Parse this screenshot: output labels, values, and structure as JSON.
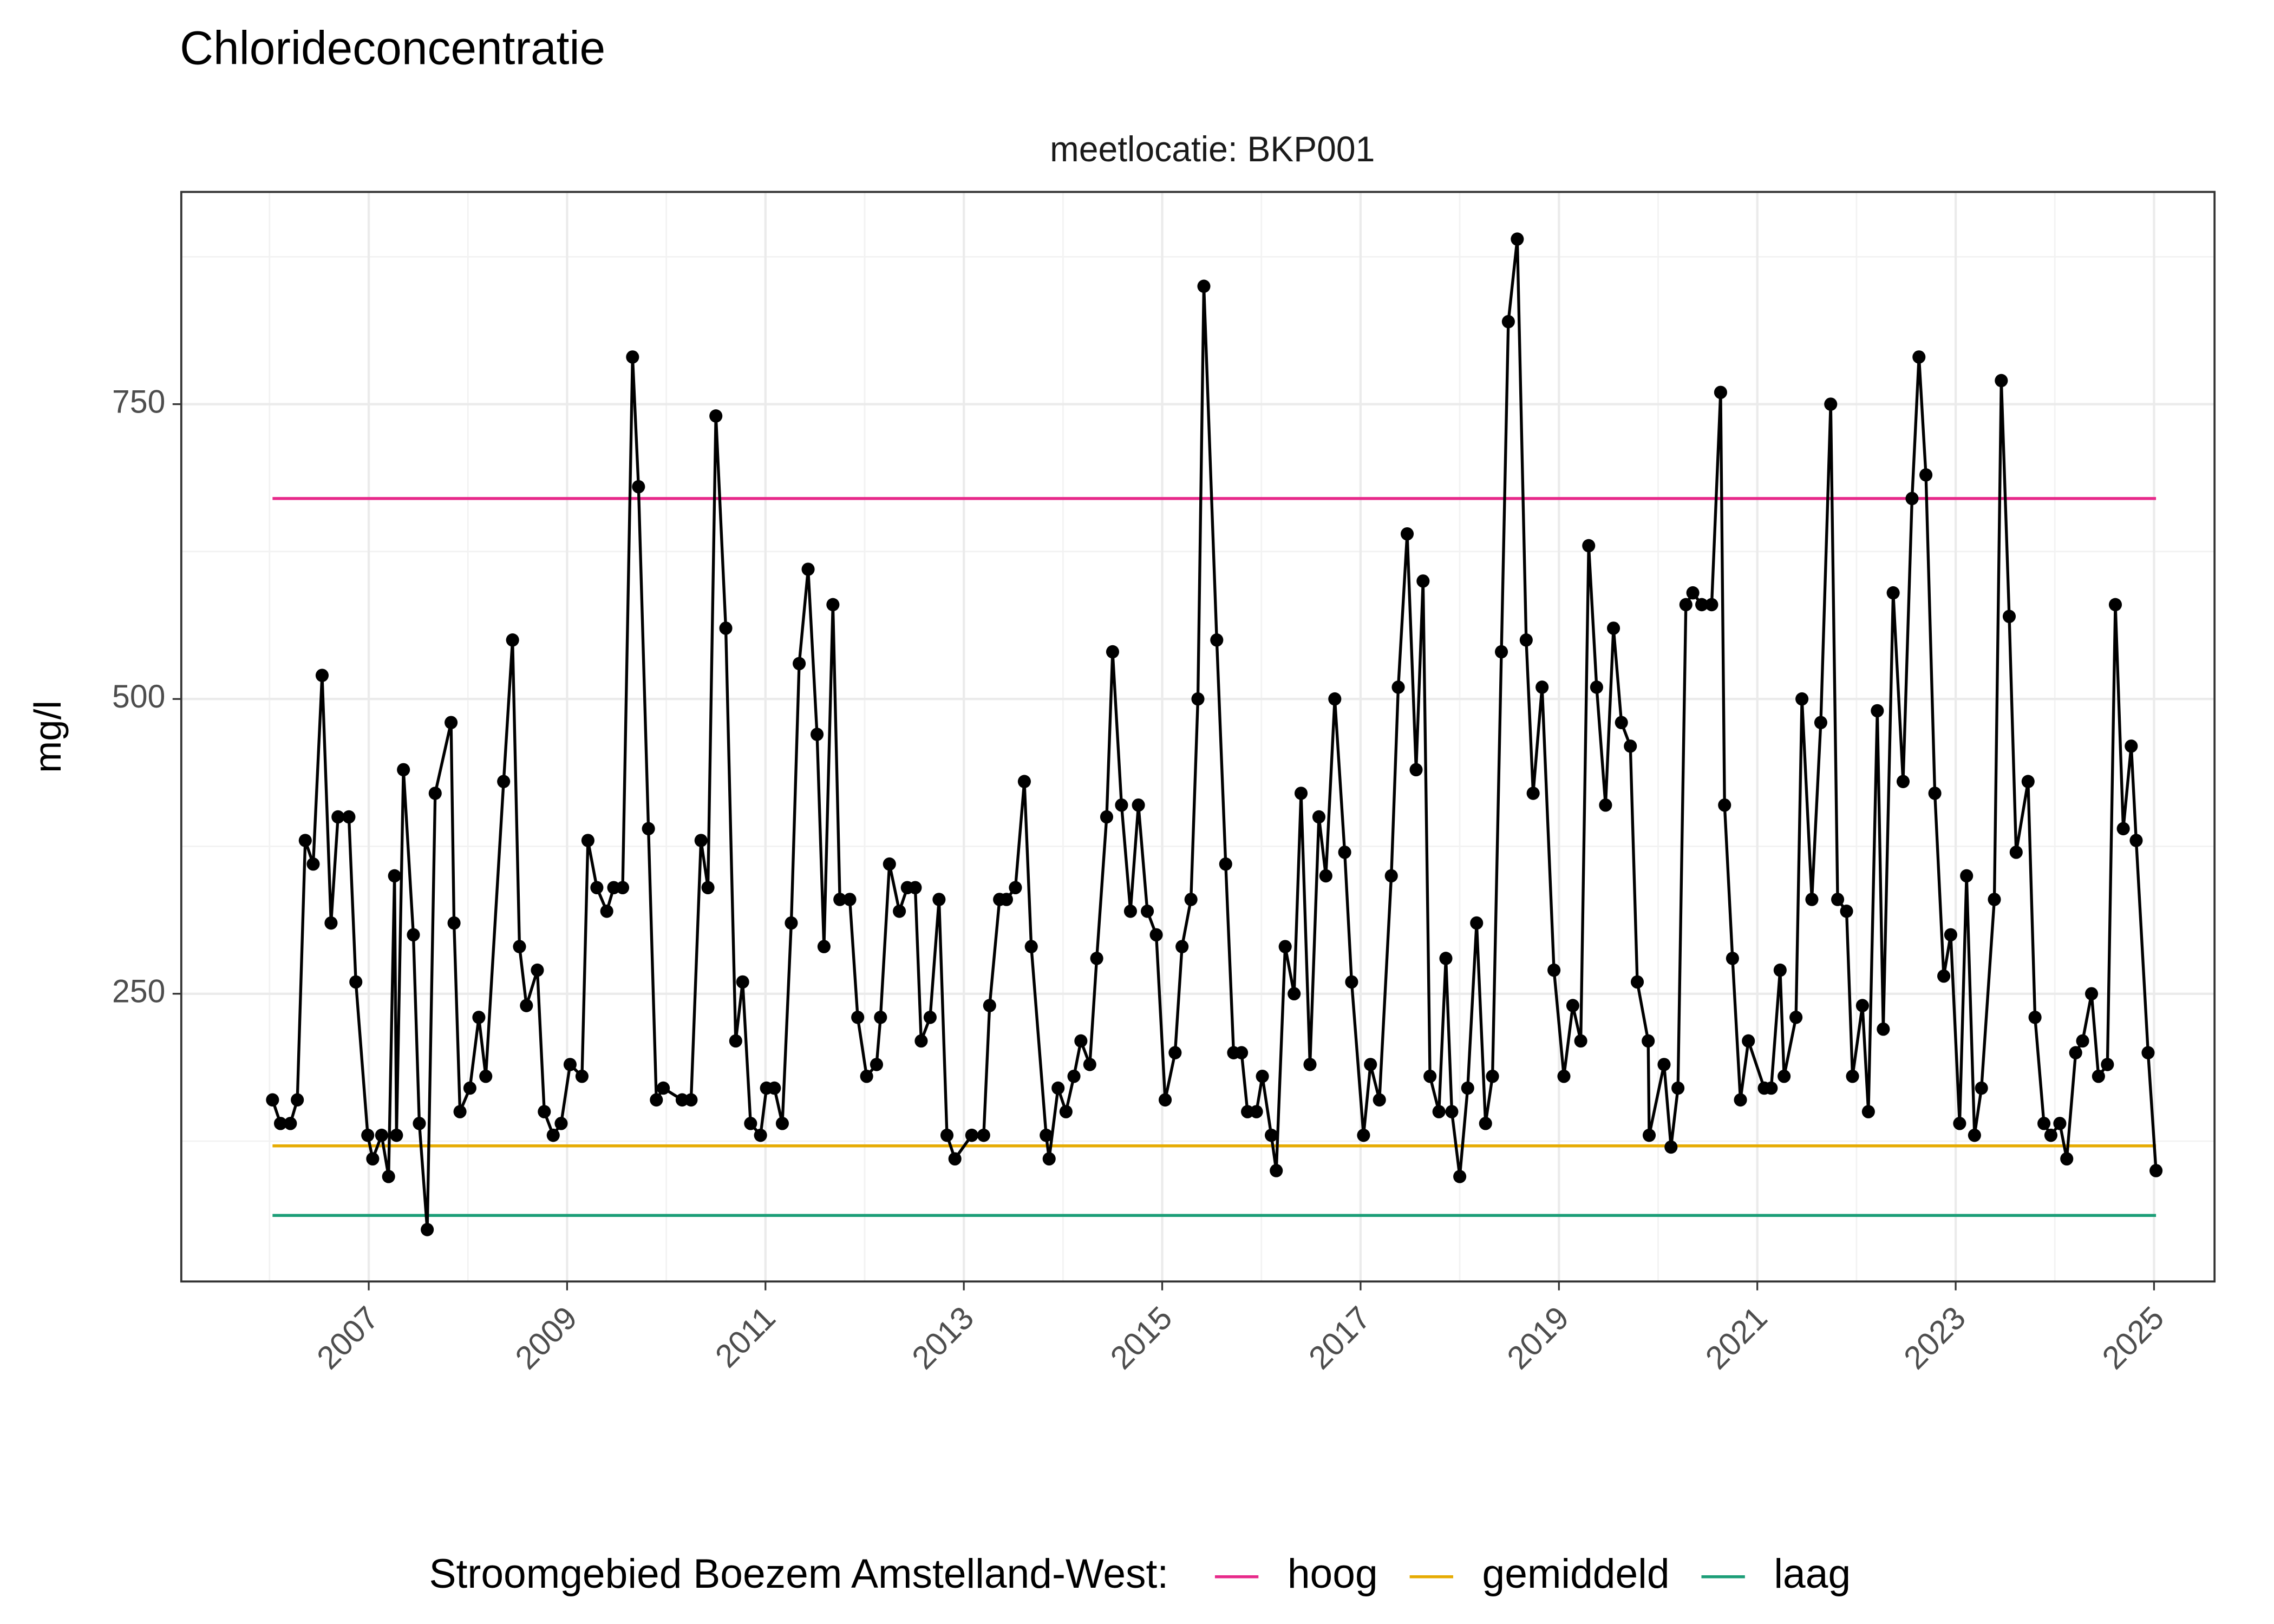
{
  "chart_data": {
    "type": "line",
    "title": "Chlorideconcentratie",
    "subtitle": "meetlocatie: BKP001",
    "y_label": "mg/l",
    "color": "#000000",
    "markers": true,
    "grid": true,
    "legend_title": "Stroomgebied Boezem Amstelland-West:",
    "legend_position": "bottom",
    "xlim": [
      2005.11,
      2025.61
    ],
    "ylim": [
      6,
      930
    ],
    "xticks": [
      2007,
      2009,
      2011,
      2013,
      2015,
      2017,
      2019,
      2021,
      2023,
      2025
    ],
    "yticks": [
      250,
      500,
      750
    ],
    "x": [
      2006.03,
      2006.11,
      2006.21,
      2006.28,
      2006.36,
      2006.44,
      2006.53,
      2006.62,
      2006.69,
      2006.8,
      2006.87,
      2006.99,
      2007.04,
      2007.13,
      2007.2,
      2007.26,
      2007.28,
      2007.35,
      2007.45,
      2007.51,
      2007.59,
      2007.67,
      2007.83,
      2007.86,
      2007.92,
      2008.02,
      2008.11,
      2008.18,
      2008.36,
      2008.45,
      2008.52,
      2008.59,
      2008.7,
      2008.77,
      2008.86,
      2008.94,
      2009.03,
      2009.15,
      2009.21,
      2009.3,
      2009.4,
      2009.47,
      2009.56,
      2009.66,
      2009.72,
      2009.82,
      2009.9,
      2009.97,
      2010.16,
      2010.25,
      2010.35,
      2010.42,
      2010.5,
      2010.6,
      2010.7,
      2010.77,
      2010.85,
      2010.95,
      2011.01,
      2011.09,
      2011.17,
      2011.26,
      2011.34,
      2011.43,
      2011.52,
      2011.59,
      2011.68,
      2011.75,
      2011.85,
      2011.93,
      2012.02,
      2012.12,
      2012.16,
      2012.25,
      2012.35,
      2012.43,
      2012.51,
      2012.57,
      2012.66,
      2012.75,
      2012.83,
      2012.91,
      2013.08,
      2013.2,
      2013.26,
      2013.36,
      2013.43,
      2013.52,
      2013.61,
      2013.68,
      2013.83,
      2013.86,
      2013.95,
      2014.03,
      2014.11,
      2014.18,
      2014.27,
      2014.34,
      2014.44,
      2014.5,
      2014.59,
      2014.68,
      2014.76,
      2014.85,
      2014.94,
      2015.03,
      2015.13,
      2015.2,
      2015.29,
      2015.36,
      2015.42,
      2015.55,
      2015.64,
      2015.72,
      2015.8,
      2015.86,
      2015.95,
      2016.01,
      2016.1,
      2016.15,
      2016.24,
      2016.33,
      2016.4,
      2016.49,
      2016.58,
      2016.65,
      2016.74,
      2016.84,
      2016.91,
      2017.03,
      2017.1,
      2017.19,
      2017.31,
      2017.38,
      2017.47,
      2017.56,
      2017.63,
      2017.7,
      2017.79,
      2017.86,
      2017.92,
      2018.0,
      2018.08,
      2018.17,
      2018.26,
      2018.33,
      2018.42,
      2018.49,
      2018.58,
      2018.67,
      2018.74,
      2018.83,
      2018.95,
      2019.05,
      2019.14,
      2019.22,
      2019.3,
      2019.38,
      2019.47,
      2019.55,
      2019.63,
      2019.72,
      2019.79,
      2019.9,
      2019.91,
      2020.06,
      2020.13,
      2020.2,
      2020.28,
      2020.35,
      2020.44,
      2020.54,
      2020.63,
      2020.67,
      2020.75,
      2020.83,
      2020.91,
      2021.07,
      2021.14,
      2021.23,
      2021.27,
      2021.39,
      2021.45,
      2021.55,
      2021.64,
      2021.74,
      2021.81,
      2021.9,
      2021.96,
      2022.06,
      2022.12,
      2022.21,
      2022.27,
      2022.37,
      2022.47,
      2022.56,
      2022.63,
      2022.7,
      2022.79,
      2022.88,
      2022.95,
      2023.04,
      2023.11,
      2023.19,
      2023.26,
      2023.39,
      2023.46,
      2023.54,
      2023.61,
      2023.73,
      2023.8,
      2023.89,
      2023.96,
      2024.05,
      2024.12,
      2024.21,
      2024.28,
      2024.37,
      2024.44,
      2024.53,
      2024.61,
      2024.69,
      2024.77,
      2024.82,
      2024.94,
      2025.02
    ],
    "values": [
      160,
      140,
      140,
      160,
      380,
      360,
      520,
      310,
      400,
      400,
      260,
      130,
      110,
      130,
      95,
      350,
      130,
      440,
      300,
      140,
      50,
      420,
      480,
      310,
      150,
      170,
      230,
      180,
      430,
      550,
      290,
      240,
      270,
      150,
      130,
      140,
      190,
      180,
      380,
      340,
      320,
      340,
      340,
      790,
      680,
      390,
      160,
      170,
      160,
      160,
      380,
      340,
      740,
      560,
      210,
      260,
      140,
      130,
      170,
      170,
      140,
      310,
      530,
      610,
      470,
      290,
      580,
      330,
      330,
      230,
      180,
      190,
      230,
      360,
      320,
      340,
      340,
      210,
      230,
      330,
      130,
      110,
      130,
      130,
      240,
      330,
      330,
      340,
      430,
      290,
      130,
      110,
      170,
      150,
      180,
      210,
      190,
      280,
      400,
      540,
      410,
      320,
      410,
      320,
      300,
      160,
      200,
      290,
      330,
      500,
      850,
      550,
      360,
      200,
      200,
      150,
      150,
      180,
      130,
      100,
      290,
      250,
      420,
      190,
      400,
      350,
      500,
      370,
      260,
      130,
      190,
      160,
      350,
      510,
      640,
      440,
      600,
      180,
      150,
      280,
      150,
      95,
      170,
      310,
      140,
      180,
      540,
      820,
      890,
      550,
      420,
      510,
      270,
      180,
      240,
      210,
      630,
      510,
      410,
      560,
      480,
      460,
      260,
      210,
      130,
      190,
      120,
      170,
      580,
      590,
      580,
      580,
      760,
      410,
      280,
      160,
      210,
      170,
      170,
      270,
      180,
      230,
      500,
      330,
      480,
      750,
      330,
      320,
      180,
      240,
      150,
      490,
      220,
      590,
      430,
      670,
      790,
      690,
      420,
      265,
      300,
      140,
      350,
      130,
      170,
      330,
      770,
      570,
      370,
      430,
      230,
      140,
      130,
      140,
      110,
      200,
      210,
      250,
      180,
      190,
      580,
      390,
      460,
      380,
      200,
      100
    ],
    "reference_lines": [
      {
        "name": "hoog",
        "color": "#e7298a",
        "x": [
          2006.03,
          2025.02
        ],
        "values": [
          670,
          670
        ]
      },
      {
        "name": "gemiddeld",
        "color": "#e6ab02",
        "x": [
          2006.03,
          2025.02
        ],
        "values": [
          121,
          121
        ]
      },
      {
        "name": "laag",
        "color": "#1b9e77",
        "x": [
          2006.03,
          2025.02
        ],
        "values": [
          62,
          62
        ]
      }
    ]
  }
}
